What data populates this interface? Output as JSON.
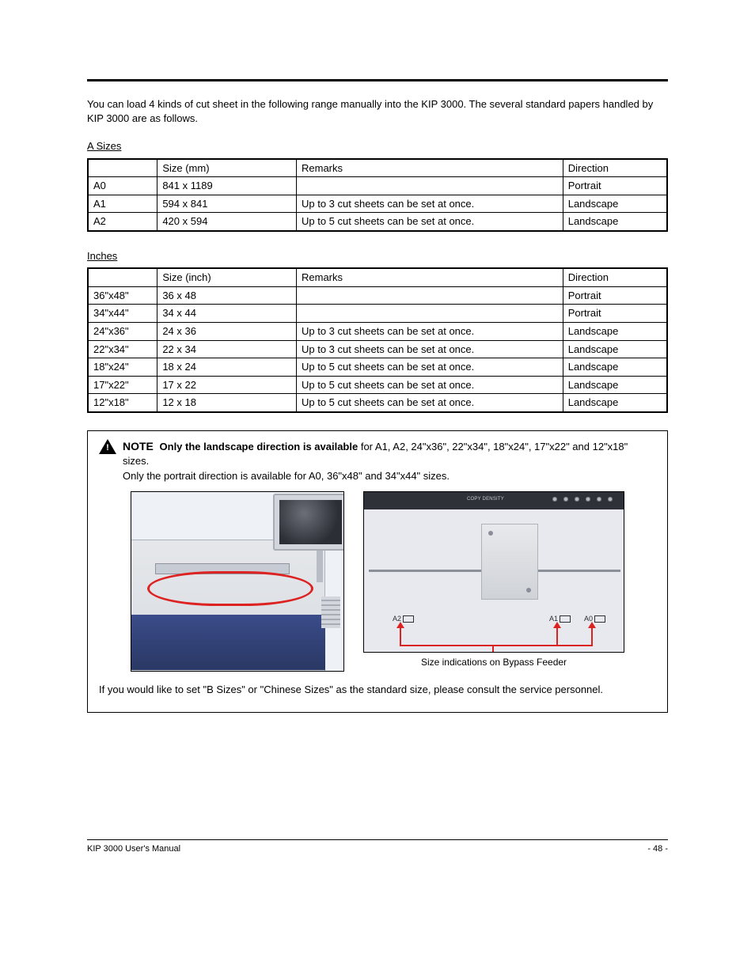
{
  "topRule": true,
  "intro": "You can load 4 kinds of cut sheet in the following range manually into the KIP 3000. The several standard papers handled by KIP 3000 are as follows.",
  "aSeries": {
    "label": "A Sizes",
    "columns": [
      "",
      "Size (mm)",
      "Remarks",
      "Direction"
    ],
    "rows": [
      [
        "A0",
        "841 x 1189",
        "",
        "Portrait"
      ],
      [
        "A1",
        "594 x 841",
        "Up to 3 cut sheets can be set at once.",
        "Landscape"
      ],
      [
        "A2",
        "420 x 594",
        "Up to 5 cut sheets can be set at once.",
        "Landscape"
      ]
    ]
  },
  "bSeries": {
    "label": "Inches",
    "columns": [
      "",
      "Size (inch)",
      "Remarks",
      "Direction"
    ],
    "rows": [
      [
        "36\"x48\"",
        "36 x 48",
        "",
        "Portrait"
      ],
      [
        "34\"x44\"",
        "34 x 44",
        "",
        "Portrait"
      ],
      [
        "24\"x36\"",
        "24 x 36",
        "Up to 3 cut sheets can be set at once.",
        "Landscape"
      ],
      [
        "22\"x34\"",
        "22 x 34",
        "Up to 3 cut sheets can be set at once.",
        "Landscape"
      ],
      [
        "18\"x24\"",
        "18 x 24",
        "Up to 5 cut sheets can be set at once.",
        "Landscape"
      ],
      [
        "17\"x22\"",
        "17 x 22",
        "Up to 5 cut sheets can be set at once.",
        "Landscape"
      ],
      [
        "12\"x18\"",
        "12 x 18",
        "Up to 5 cut sheets can be set at once.",
        "Landscape"
      ]
    ]
  },
  "tableColWidths": [
    "12%",
    "24%",
    "46%",
    "18%"
  ],
  "noteBox": {
    "label": "NOTE",
    "text1Bold": "Only the landscape direction is available",
    "text1Rest": " for A1, A2, 24\"x36\", 22\"x34\", 18\"x24\", 17\"x22\" and 12\"x18\" sizes.",
    "text2": "Only the portrait direction is available for A0, 36\"x48\" and 34\"x44\" sizes.",
    "leftPhoto": {
      "marks": {
        "a2": "A2",
        "a1": "A1",
        "a0": "A0"
      }
    },
    "arrowCaption": "Size indications on Bypass Feeder",
    "afterNote": "If you would like to set \"B Sizes\" or \"Chinese Sizes\" as the standard size, please consult the service personnel."
  },
  "footer": {
    "left": "KIP 3000 User's Manual",
    "right": "- 48 -"
  }
}
